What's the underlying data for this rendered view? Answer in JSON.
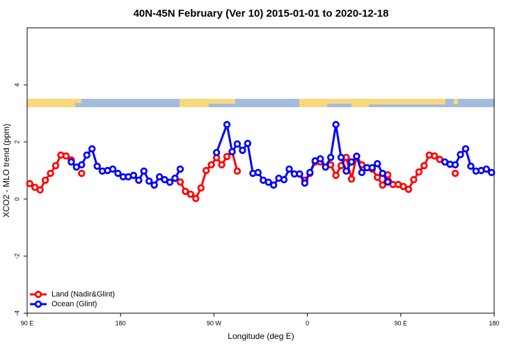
{
  "chart_data": {
    "type": "line",
    "title": "40N-45N February (Ver 10)   2015-01-01 to 2020-12-18",
    "xlabel": "Longitude (deg E)",
    "ylabel": "XCO2 - MLO trend (ppm)",
    "xlim": [
      90,
      540
    ],
    "ylim": [
      -4,
      6
    ],
    "xticks": [
      {
        "value": 90,
        "label": "90 E"
      },
      180,
      {
        "value": 270,
        "label": "90 W"
      },
      {
        "value": 360,
        "label": "0"
      },
      {
        "value": 450,
        "label": "90 E"
      },
      {
        "value": 540,
        "label": "180"
      }
    ],
    "yticks": [
      -4,
      -2,
      0,
      2,
      4
    ],
    "legend": "bottom-left",
    "series": [
      {
        "name": "Land (Nadir&Glint)",
        "color": "#ff0000",
        "x": [
          92.5,
          97.5,
          102.5,
          107.5,
          112.5,
          117.5,
          122.5,
          127.5,
          132.5,
          137.5,
          142.5,
          147.5,
          237.5,
          242.5,
          247.5,
          252.5,
          257.5,
          262.5,
          267.5,
          272.5,
          277.5,
          282.5,
          287.5,
          292.5,
          297.5,
          352.5,
          357.5,
          362.5,
          367.5,
          372.5,
          377.5,
          382.5,
          387.5,
          392.5,
          397.5,
          402.5,
          407.5,
          412.5,
          417.5,
          422.5,
          427.5,
          432.5,
          437.5,
          442.5,
          447.5,
          452.5,
          457.5,
          462.5,
          467.5,
          472.5,
          477.5,
          482.5,
          487.5,
          492.5,
          502.5
        ],
        "values": [
          0.54,
          0.41,
          0.32,
          0.66,
          0.9,
          1.17,
          1.54,
          1.51,
          1.37,
          null,
          0.9,
          null,
          0.6,
          0.27,
          0.17,
          0.02,
          0.39,
          1.0,
          1.2,
          1.45,
          1.2,
          1.49,
          1.66,
          0.98,
          null,
          0.88,
          0.66,
          0.9,
          1.3,
          1.3,
          1.12,
          1.2,
          0.83,
          1.17,
          1.46,
          0.7,
          1.5,
          1.2,
          1.1,
          1.05,
          0.76,
          0.49,
          0.85,
          0.51,
          0.51,
          0.44,
          0.34,
          0.68,
          0.95,
          1.17,
          1.54,
          1.51,
          1.39,
          null,
          0.9
        ]
      },
      {
        "name": "Ocean (Glint)",
        "color": "#0000ff",
        "x": [
          132.5,
          137.5,
          142.5,
          147.5,
          152.5,
          157.5,
          162.5,
          167.5,
          172.5,
          177.5,
          182.5,
          187.5,
          192.5,
          197.5,
          202.5,
          207.5,
          212.5,
          217.5,
          222.5,
          227.5,
          232.5,
          237.5,
          242.5,
          272.5,
          282.5,
          287.5,
          292.5,
          297.5,
          302.5,
          307.5,
          312.5,
          317.5,
          322.5,
          327.5,
          332.5,
          337.5,
          342.5,
          347.5,
          352.5,
          357.5,
          362.5,
          367.5,
          372.5,
          377.5,
          382.5,
          387.5,
          392.5,
          397.5,
          402.5,
          407.5,
          412.5,
          417.5,
          422.5,
          427.5,
          432.5,
          437.5,
          442.5,
          492.5,
          497.5,
          502.5,
          507.5,
          512.5,
          517.5,
          522.5,
          527.5,
          532.5,
          537.5
        ],
        "values": [
          1.3,
          1.12,
          1.2,
          1.54,
          1.76,
          1.15,
          0.98,
          1.0,
          1.05,
          0.9,
          0.78,
          0.78,
          0.83,
          0.66,
          0.98,
          0.63,
          0.49,
          0.78,
          0.68,
          0.59,
          0.73,
          1.05,
          null,
          1.63,
          2.61,
          1.66,
          1.93,
          1.71,
          1.95,
          0.9,
          0.93,
          0.66,
          0.59,
          0.49,
          0.73,
          0.68,
          1.05,
          0.88,
          0.88,
          0.56,
          0.93,
          1.34,
          1.41,
          1.12,
          1.46,
          2.61,
          1.46,
          0.98,
          1.3,
          1.5,
          0.93,
          1.1,
          1.1,
          1.24,
          0.9,
          0.6,
          null,
          1.3,
          1.22,
          1.2,
          1.56,
          1.76,
          1.15,
          0.98,
          1.0,
          1.05,
          0.93
        ]
      }
    ]
  }
}
